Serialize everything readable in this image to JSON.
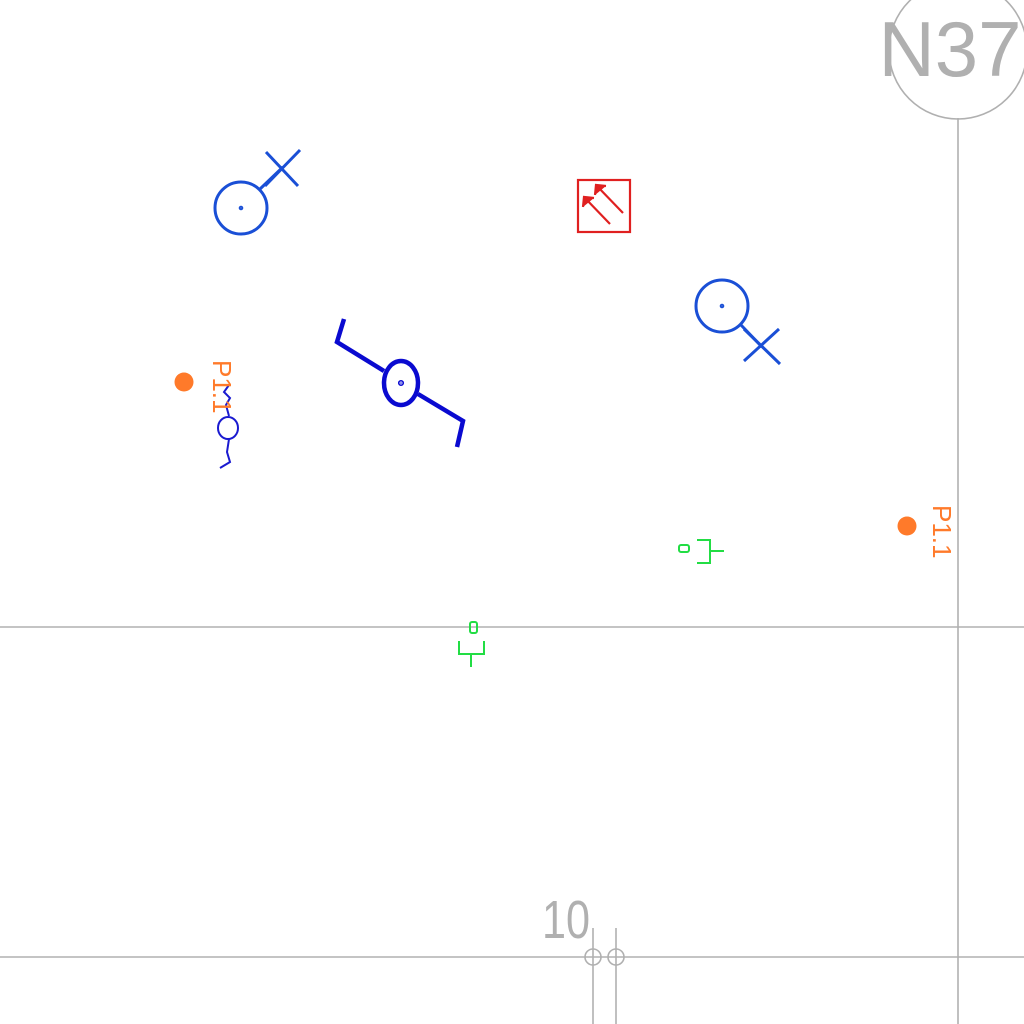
{
  "drawing": {
    "colors": {
      "grid": "#b0b0b0",
      "light_fixture": "#1a4fd6",
      "pendant_fixture": "#0a0ad0",
      "small_fixture": "#1a1ad0",
      "power_point": "#ff7a2a",
      "data_outlet": "#22dd44",
      "fire_equipment": "#e02020"
    },
    "grid_labels": {
      "column": "N37",
      "row": "10"
    },
    "fixture_labels": {
      "power_left": "P1.1",
      "power_right": "P1.1"
    },
    "symbols": {
      "light_a": "light-fixture-icon",
      "light_b": "light-fixture-icon",
      "pendant": "pendant-light-icon",
      "wall_light": "wall-light-icon",
      "power_point": "power-point-icon",
      "data_outlet": "data-outlet-icon",
      "fire_panel": "fire-indicator-panel-icon"
    }
  }
}
